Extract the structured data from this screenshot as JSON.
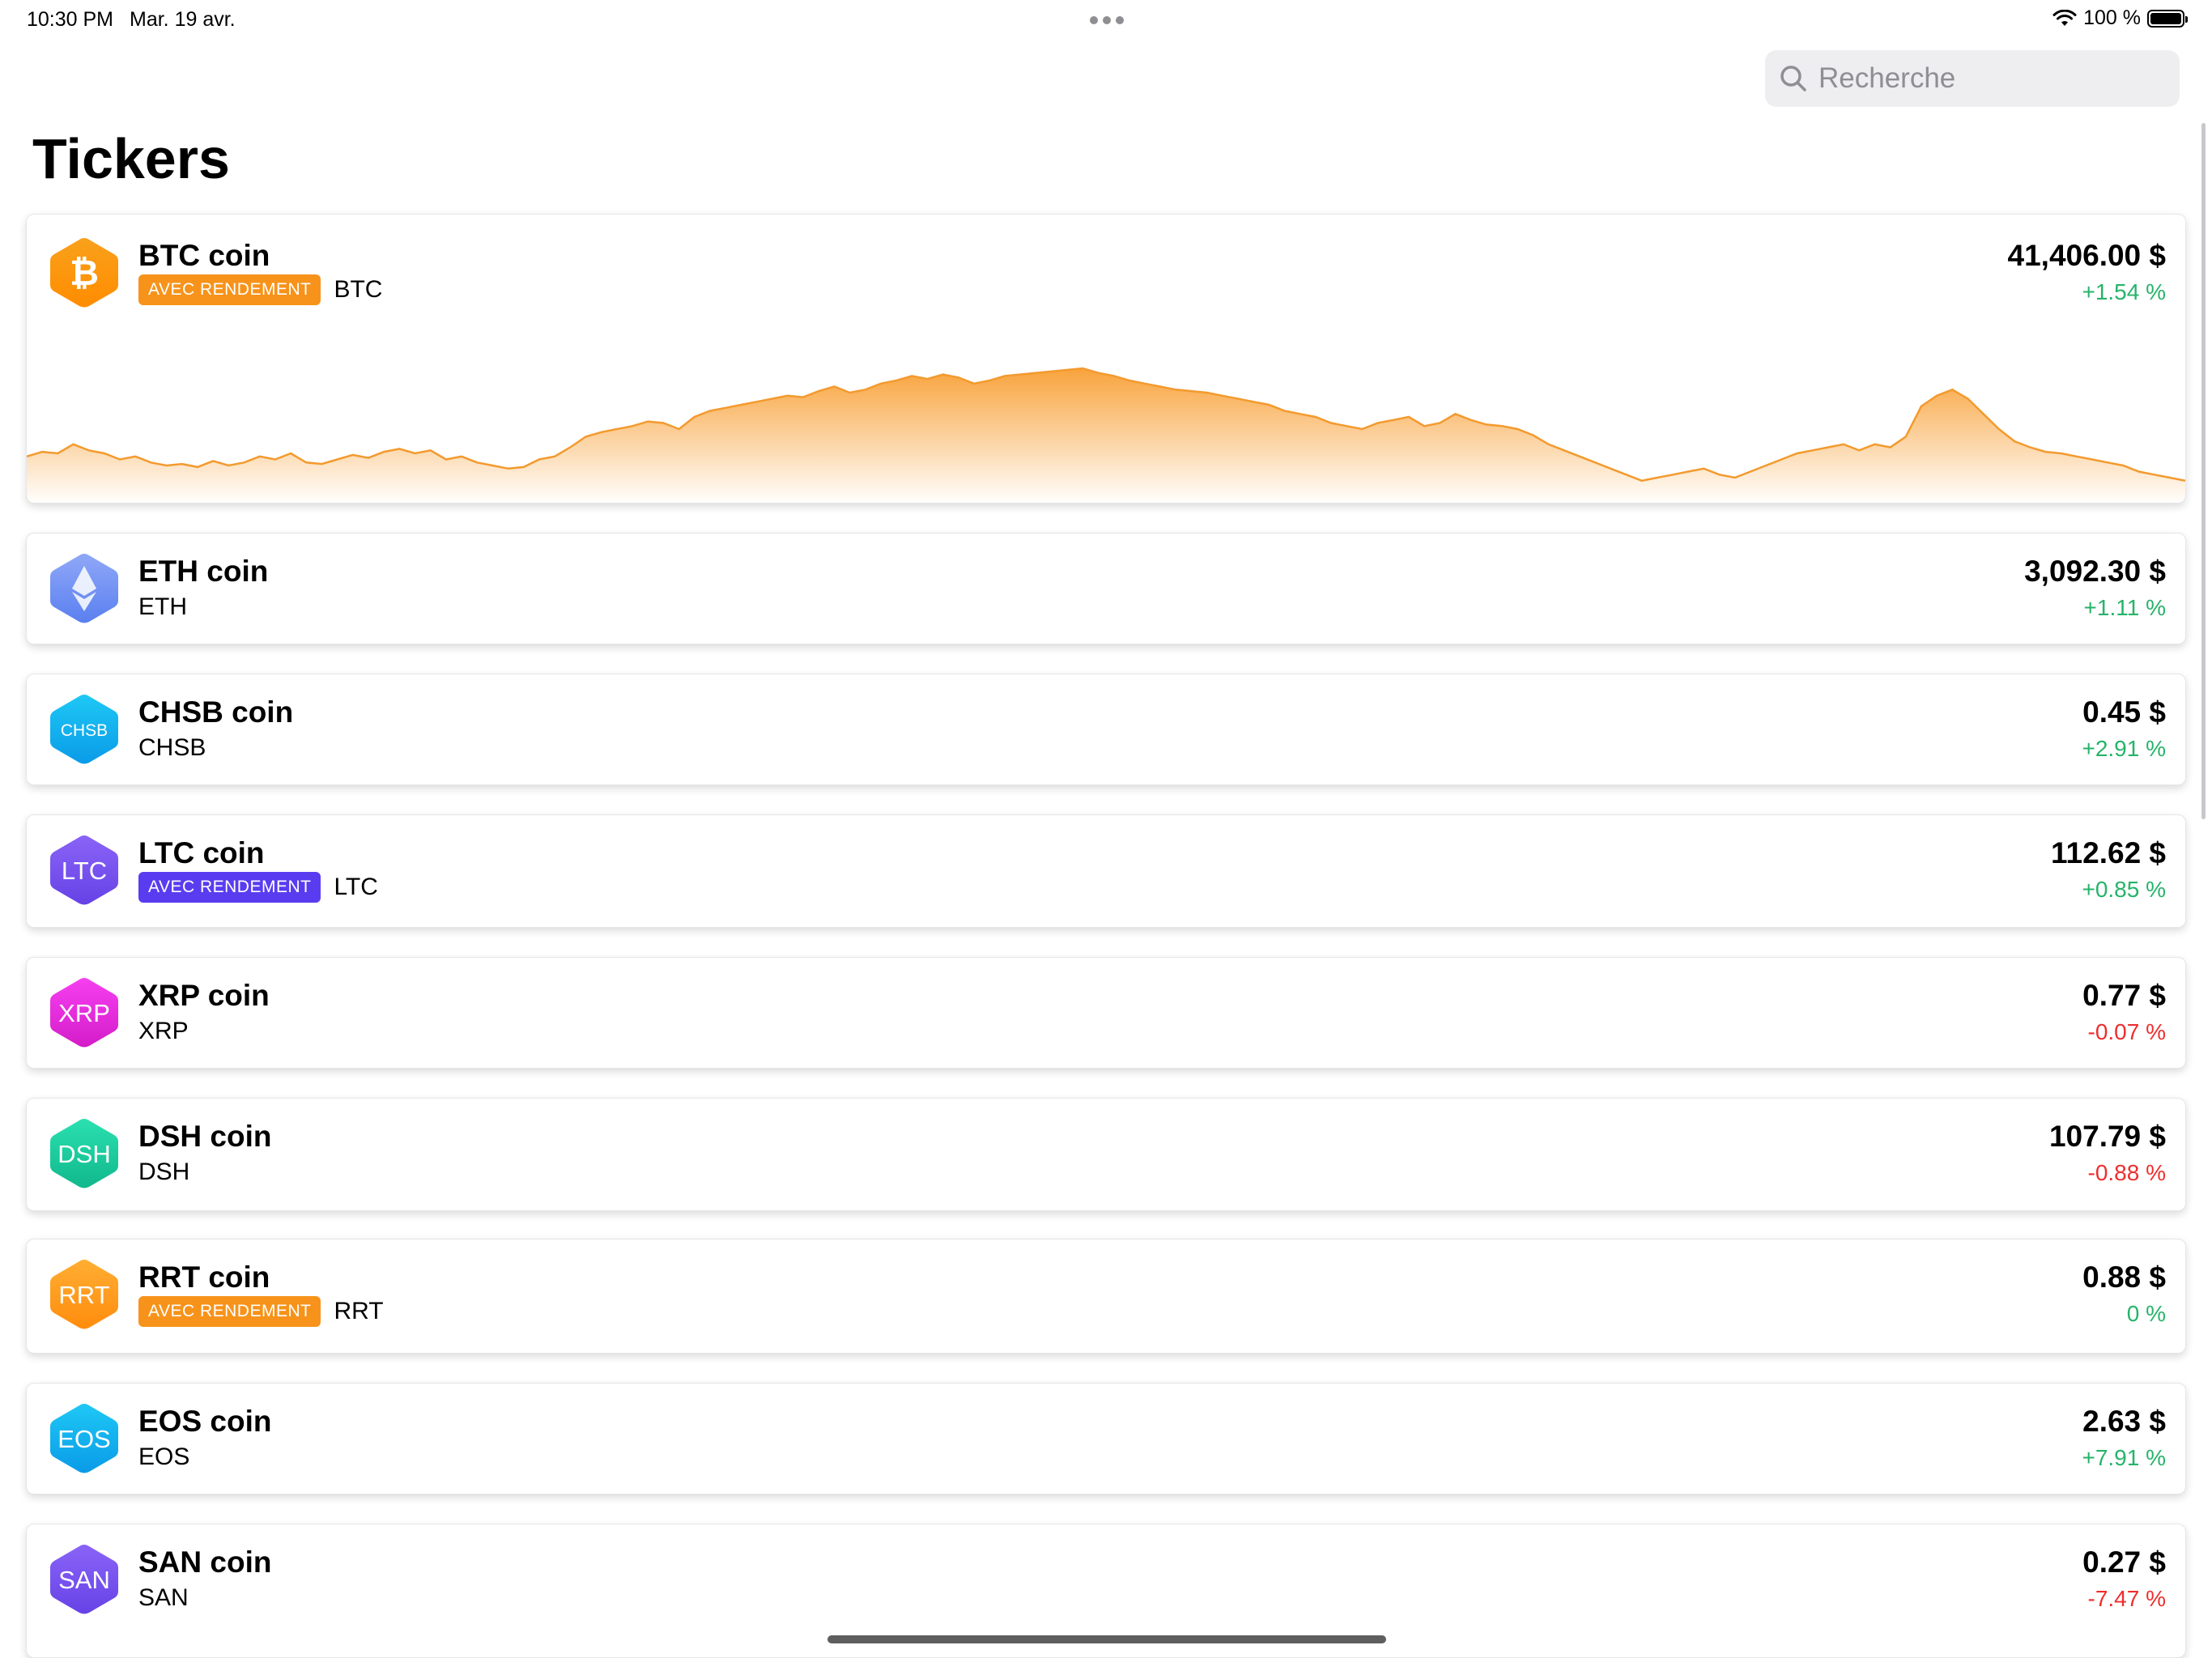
{
  "status_bar": {
    "time": "10:30 PM",
    "date": "Mar. 19 avr.",
    "battery": "100 %",
    "icons": [
      "more-dots-icon",
      "wifi-icon",
      "battery-icon"
    ]
  },
  "search": {
    "placeholder": "Recherche",
    "icon": "search-icon"
  },
  "page": {
    "title": "Tickers"
  },
  "colors": {
    "accent_orange": "#f7931a",
    "accent_purple": "#5a3cf0",
    "up_green": "#26b36a",
    "down_red": "#ee2e2e",
    "chart_line": "#f39a2e"
  },
  "tickers": [
    {
      "name": "BTC coin",
      "symbol": "BTC",
      "badge": "AVEC RENDEMENT",
      "badge_color": "orange",
      "price": "41,406.00 $",
      "change": "+1.54 %",
      "direction": "up",
      "icon_label": "₿",
      "icon_colors": [
        "#f9a11b",
        "#ff8c00"
      ]
    },
    {
      "name": "ETH coin",
      "symbol": "ETH",
      "badge": "",
      "price": "3,092.30 $",
      "change": "+1.11 %",
      "direction": "up",
      "icon_label": "",
      "icon_colors": [
        "#8fa8f7",
        "#5a7ff0"
      ]
    },
    {
      "name": "CHSB coin",
      "symbol": "CHSB",
      "badge": "",
      "price": "0.45 $",
      "change": "+2.91 %",
      "direction": "up",
      "icon_label": "CHSB",
      "icon_colors": [
        "#1ec8f5",
        "#0a9be8"
      ]
    },
    {
      "name": "LTC coin",
      "symbol": "LTC",
      "badge": "AVEC RENDEMENT",
      "badge_color": "purple",
      "price": "112.62 $",
      "change": "+0.85 %",
      "direction": "up",
      "icon_label": "LTC",
      "icon_colors": [
        "#8a64f7",
        "#6642e6"
      ]
    },
    {
      "name": "XRP coin",
      "symbol": "XRP",
      "badge": "",
      "price": "0.77 $",
      "change": "-0.07 %",
      "direction": "down",
      "icon_label": "XRP",
      "icon_colors": [
        "#f640f0",
        "#d41cc9"
      ]
    },
    {
      "name": "DSH coin",
      "symbol": "DSH",
      "badge": "",
      "price": "107.79 $",
      "change": "-0.88 %",
      "direction": "down",
      "icon_label": "DSH",
      "icon_colors": [
        "#2be0b0",
        "#10b88c"
      ]
    },
    {
      "name": "RRT coin",
      "symbol": "RRT",
      "badge": "AVEC RENDEMENT",
      "badge_color": "orange",
      "price": "0.88 $",
      "change": "0 %",
      "direction": "up",
      "icon_label": "RRT",
      "icon_colors": [
        "#ffae33",
        "#ff8c0d"
      ]
    },
    {
      "name": "EOS coin",
      "symbol": "EOS",
      "badge": "",
      "price": "2.63 $",
      "change": "+7.91 %",
      "direction": "up",
      "icon_label": "EOS",
      "icon_colors": [
        "#1ec8f5",
        "#0a9be8"
      ]
    },
    {
      "name": "SAN coin",
      "symbol": "SAN",
      "badge": "",
      "price": "0.27 $",
      "change": "-7.47 %",
      "direction": "down",
      "icon_label": "SAN",
      "icon_colors": [
        "#8a64f7",
        "#6642e6"
      ]
    }
  ],
  "btc_sparkline": {
    "values": [
      42,
      45,
      44,
      50,
      46,
      44,
      40,
      42,
      38,
      36,
      37,
      35,
      39,
      36,
      38,
      42,
      40,
      44,
      38,
      37,
      40,
      43,
      41,
      45,
      47,
      44,
      46,
      40,
      42,
      38,
      36,
      34,
      35,
      40,
      42,
      48,
      55,
      58,
      60,
      62,
      65,
      64,
      60,
      68,
      72,
      74,
      76,
      78,
      80,
      82,
      81,
      85,
      88,
      84,
      86,
      90,
      92,
      95,
      93,
      96,
      94,
      90,
      92,
      95,
      96,
      97,
      98,
      99,
      100,
      97,
      95,
      92,
      90,
      88,
      86,
      85,
      84,
      82,
      80,
      78,
      76,
      72,
      70,
      68,
      64,
      62,
      60,
      64,
      66,
      68,
      62,
      64,
      70,
      66,
      63,
      62,
      60,
      56,
      50,
      46,
      42,
      38,
      34,
      30,
      26,
      28,
      30,
      32,
      34,
      30,
      28,
      32,
      36,
      40,
      44,
      46,
      48,
      50,
      46,
      50,
      48,
      55,
      75,
      82,
      86,
      80,
      70,
      60,
      52,
      48,
      45,
      44,
      42,
      40,
      38,
      36,
      32,
      30,
      28,
      26
    ]
  }
}
